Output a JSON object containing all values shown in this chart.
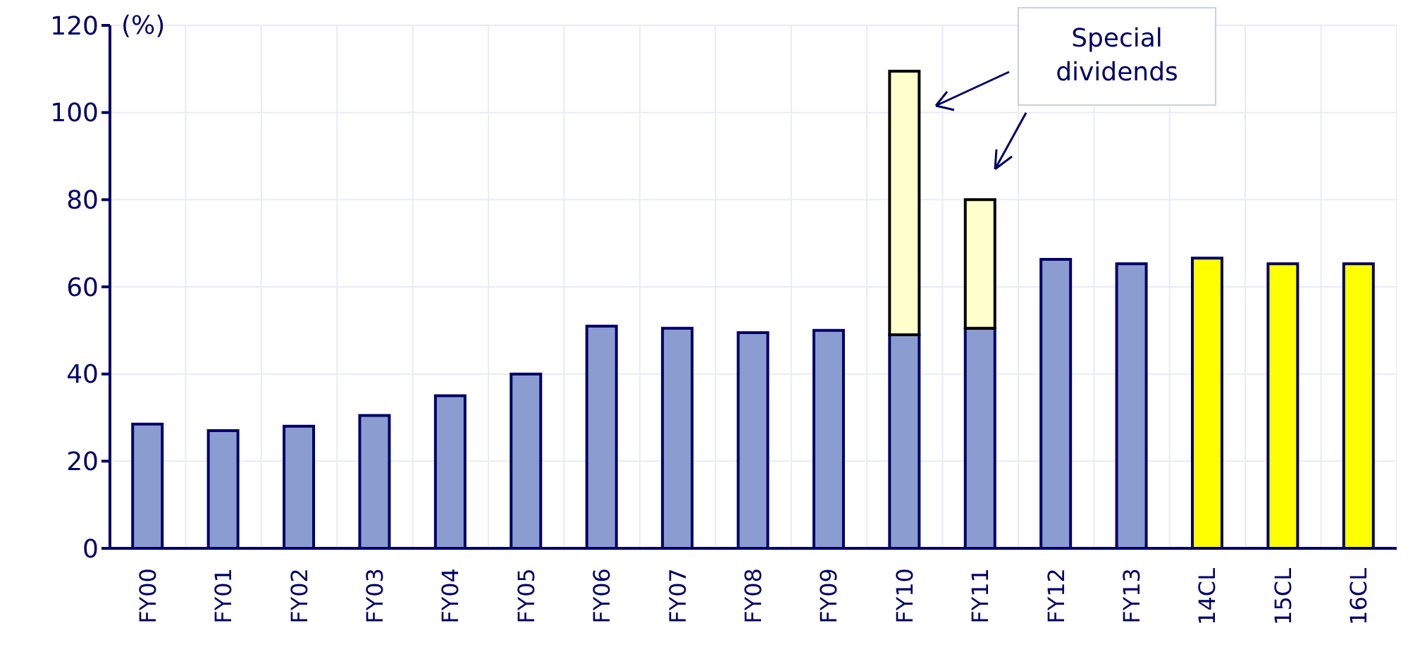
{
  "chart_data": {
    "type": "bar",
    "stacked": true,
    "ylabel": "(%)",
    "categories": [
      "FY00",
      "FY01",
      "FY02",
      "FY03",
      "FY04",
      "FY05",
      "FY06",
      "FY07",
      "FY08",
      "FY09",
      "FY10",
      "FY11",
      "FY12",
      "FY13",
      "14CL",
      "15CL",
      "16CL"
    ],
    "series": [
      {
        "colors": [
          "#8b9dd0",
          "#8b9dd0",
          "#8b9dd0",
          "#8b9dd0",
          "#8b9dd0",
          "#8b9dd0",
          "#8b9dd0",
          "#8b9dd0",
          "#8b9dd0",
          "#8b9dd0",
          "#8b9dd0",
          "#8b9dd0",
          "#8b9dd0",
          "#8b9dd0",
          "#ffff00",
          "#ffff00",
          "#ffff00"
        ],
        "values": [
          28.5,
          27,
          28,
          30.5,
          35,
          40,
          51,
          50.5,
          49.5,
          50,
          49,
          50.5,
          66.3,
          65.3,
          66.6,
          65.3,
          65.3
        ]
      },
      {
        "color": "#ffffcc",
        "values": [
          null,
          null,
          null,
          null,
          null,
          null,
          null,
          null,
          null,
          null,
          60.5,
          29.5,
          null,
          null,
          null,
          null,
          null
        ]
      }
    ],
    "ylim": [
      0,
      120
    ],
    "yticks": [
      0,
      20,
      40,
      60,
      80,
      100,
      120
    ],
    "grid": true,
    "annotations": [
      "Special dividends"
    ]
  }
}
